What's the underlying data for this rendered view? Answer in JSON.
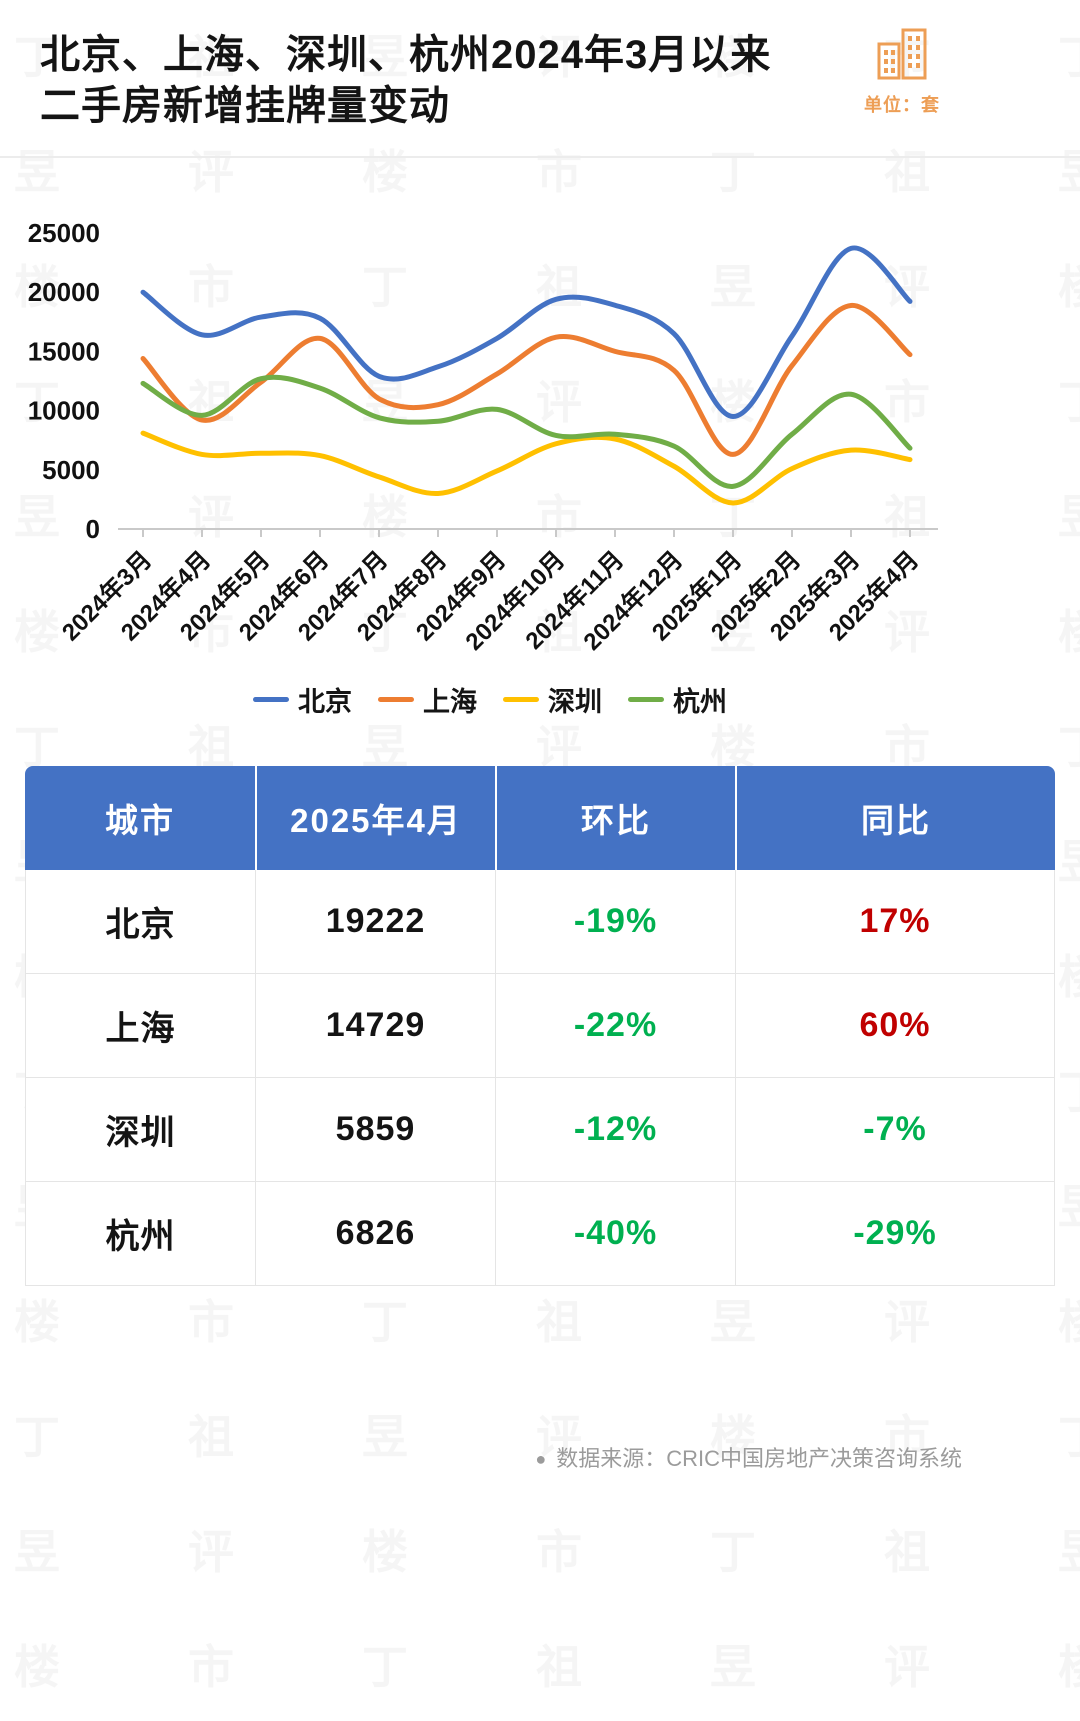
{
  "header": {
    "title_line1": "北京、上海、深圳、杭州2024年3月以来",
    "title_line2": "二手房新增挂牌量变动",
    "unit_label": "单位：套"
  },
  "chart_data": {
    "type": "line",
    "title": "",
    "xlabel": "",
    "ylabel": "",
    "ylim": [
      0,
      25000
    ],
    "yticks": [
      0,
      5000,
      10000,
      15000,
      20000,
      25000
    ],
    "grid": false,
    "legend_position": "bottom",
    "categories": [
      "2024年3月",
      "2024年4月",
      "2024年5月",
      "2024年6月",
      "2024年7月",
      "2024年8月",
      "2024年9月",
      "2024年10月",
      "2024年11月",
      "2024年12月",
      "2025年1月",
      "2025年2月",
      "2025年3月",
      "2025年4月"
    ],
    "series": [
      {
        "name": "北京",
        "color": "#4472C4",
        "values": [
          20000,
          16400,
          17900,
          17800,
          12900,
          13700,
          16100,
          19400,
          18900,
          16500,
          9500,
          16300,
          23700,
          19222
        ]
      },
      {
        "name": "上海",
        "color": "#ED7D31",
        "values": [
          14400,
          9200,
          12400,
          16100,
          11000,
          10500,
          13100,
          16200,
          15000,
          13400,
          6300,
          13800,
          18880,
          14729
        ]
      },
      {
        "name": "深圳",
        "color": "#FFC000",
        "values": [
          8100,
          6300,
          6400,
          6200,
          4400,
          3000,
          4900,
          7200,
          7600,
          5300,
          2200,
          5100,
          6660,
          5859
        ]
      },
      {
        "name": "杭州",
        "color": "#70AD47",
        "values": [
          12300,
          9600,
          12700,
          11900,
          9400,
          9100,
          10100,
          7900,
          8000,
          7000,
          3600,
          8000,
          11380,
          6826
        ]
      }
    ]
  },
  "table": {
    "headers": [
      "城市",
      "2025年4月",
      "环比",
      "同比"
    ],
    "rows": [
      {
        "city": "北京",
        "value": "19222",
        "mom": "-19%",
        "mom_color": "#00B050",
        "yoy": "17%",
        "yoy_color": "#C00000"
      },
      {
        "city": "上海",
        "value": "14729",
        "mom": "-22%",
        "mom_color": "#00B050",
        "yoy": "60%",
        "yoy_color": "#C00000"
      },
      {
        "city": "深圳",
        "value": "5859",
        "mom": "-12%",
        "mom_color": "#00B050",
        "yoy": "-7%",
        "yoy_color": "#00B050"
      },
      {
        "city": "杭州",
        "value": "6826",
        "mom": "-40%",
        "mom_color": "#00B050",
        "yoy": "-29%",
        "yoy_color": "#00B050"
      }
    ]
  },
  "footer": {
    "dot": "●",
    "source": "数据来源：CRIC中国房地产决策咨询系统"
  },
  "watermark": {
    "text": "丁祖昱评楼市"
  },
  "colors": {
    "accent_blue": "#4472C4",
    "positive_red": "#C00000",
    "negative_green": "#00B050",
    "unit_orange": "#ED9E55"
  }
}
